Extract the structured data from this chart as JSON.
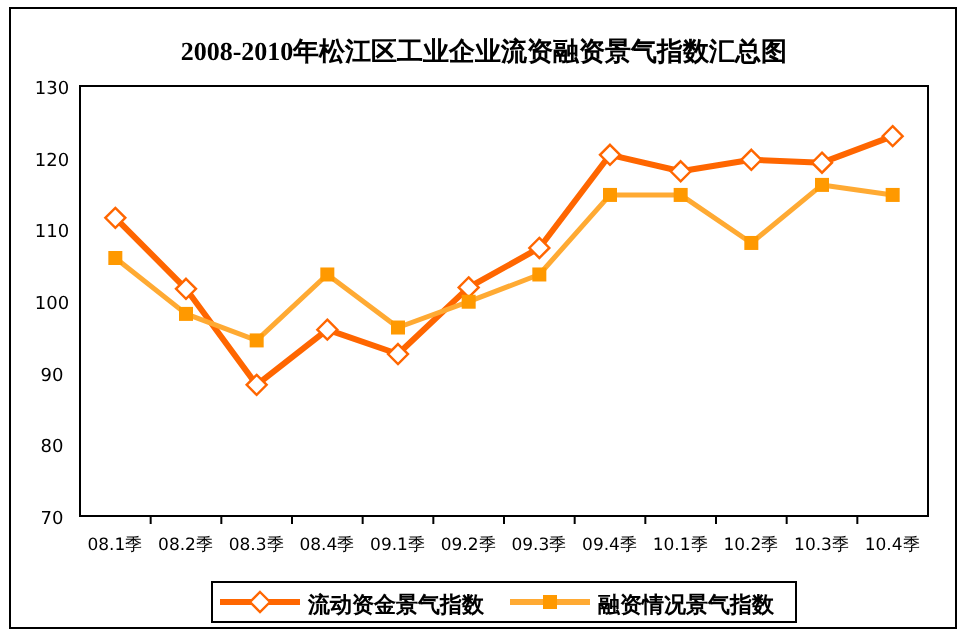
{
  "chart_data": {
    "type": "line",
    "title": "2008-2010年松江区工业企业流资融资景气指数汇总图",
    "categories": [
      "08.1季",
      "08.2季",
      "08.3季",
      "08.4季",
      "09.1季",
      "09.2季",
      "09.3季",
      "09.4季",
      "10.1季",
      "10.2季",
      "10.3季",
      "10.4季"
    ],
    "series": [
      {
        "name": "流动资金景气指数",
        "color": "#ff6600",
        "marker": "diamond",
        "values": [
          111.6,
          101.7,
          88.3,
          96.0,
          92.6,
          101.9,
          107.4,
          120.4,
          118.1,
          119.7,
          119.3,
          123.0
        ]
      },
      {
        "name": "融资情况景气指数",
        "color": "#ffaa33",
        "marker": "square",
        "values": [
          106.0,
          98.2,
          94.5,
          103.7,
          96.3,
          99.9,
          103.7,
          114.8,
          114.8,
          108.1,
          116.2,
          114.8
        ]
      }
    ],
    "ylim": [
      70,
      130
    ],
    "yticks": [
      70,
      80,
      90,
      100,
      110,
      120,
      130
    ],
    "grid": false,
    "legend": "bottom"
  }
}
